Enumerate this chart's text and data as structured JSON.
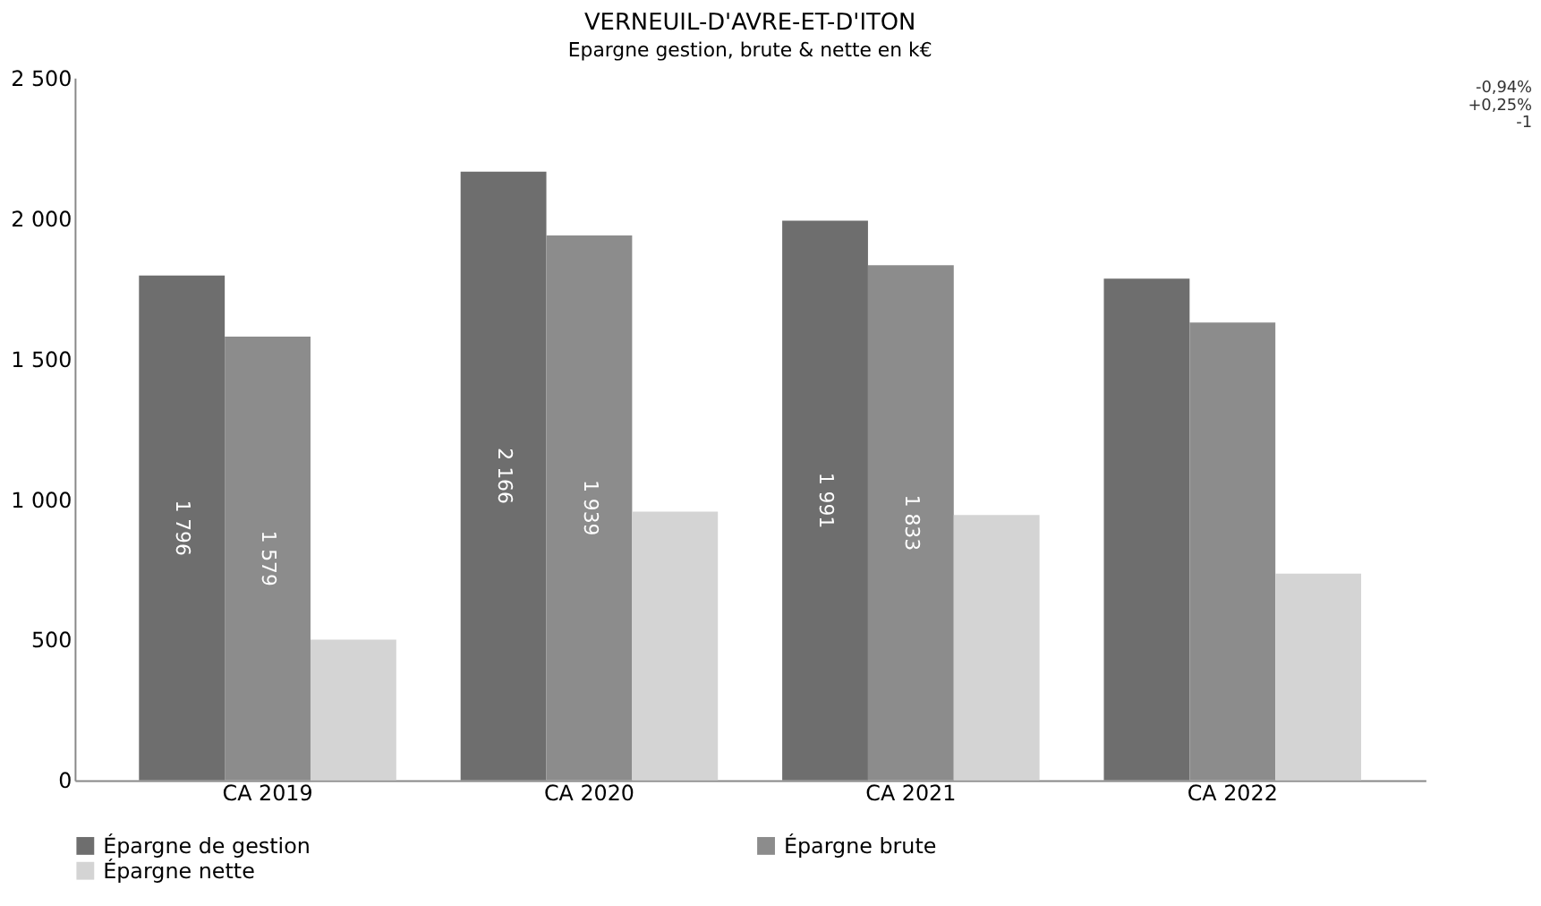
{
  "chart_data": {
    "type": "bar",
    "title": "VERNEUIL-D'AVRE-ET-D'ITON",
    "subtitle": "Epargne gestion, brute & nette en k€",
    "categories": [
      "CA 2019",
      "CA 2020",
      "CA 2021",
      "CA 2022"
    ],
    "series": [
      {
        "name": "Épargne de gestion",
        "color": "#6e6e6e",
        "values": [
          1796,
          2166,
          1991,
          1785
        ],
        "value_labels": [
          "1 796",
          "2 166",
          "1 991",
          null
        ]
      },
      {
        "name": "Épargne brute",
        "color": "#8c8c8c",
        "values": [
          1579,
          1939,
          1833,
          1629
        ],
        "value_labels": [
          "1 579",
          "1 939",
          "1 833",
          null
        ]
      },
      {
        "name": "Épargne nette",
        "color": "#d4d4d4",
        "values": [
          500,
          956,
          944,
          735
        ],
        "value_labels": [
          null,
          null,
          null,
          null
        ]
      }
    ],
    "ylim": [
      0,
      2500
    ],
    "yticks": [
      {
        "value": 0,
        "label": "0"
      },
      {
        "value": 500,
        "label": "500"
      },
      {
        "value": 1000,
        "label": "1 000"
      },
      {
        "value": 1500,
        "label": "1 500"
      },
      {
        "value": 2000,
        "label": "2 000"
      },
      {
        "value": 2500,
        "label": "2 500"
      }
    ],
    "annotations": [
      "-0,94%",
      "+0,25%",
      "-1"
    ],
    "grid": false,
    "legend": "bottom"
  }
}
